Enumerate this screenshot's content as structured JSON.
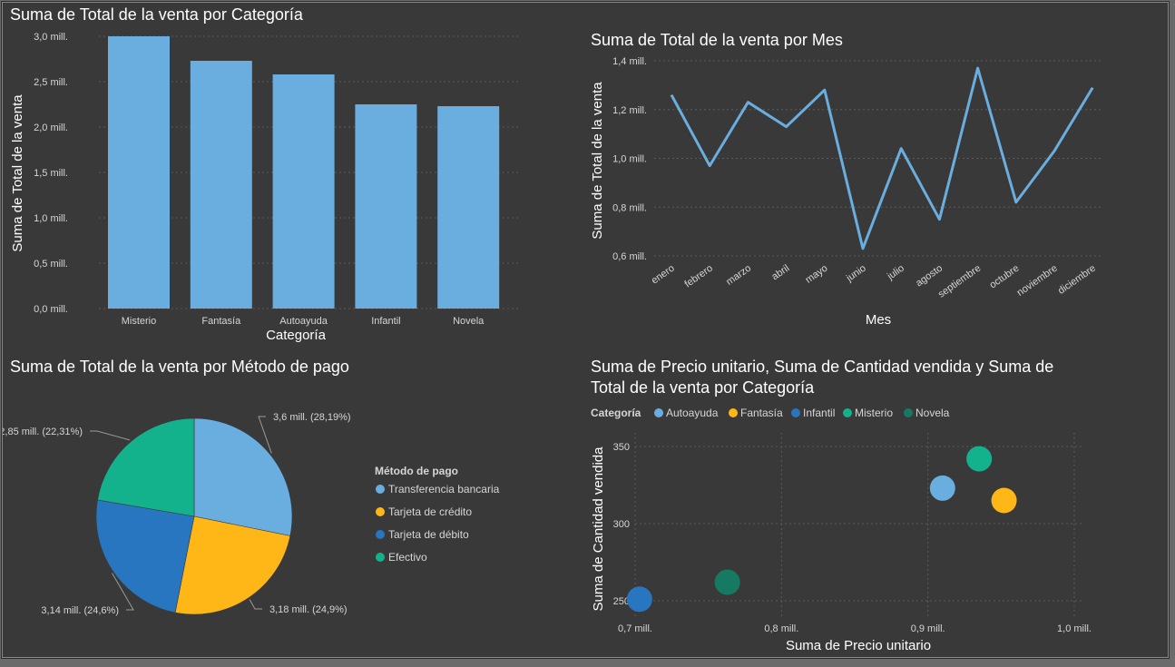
{
  "colors": {
    "bar": "#6AAEE0",
    "line": "#6AAEE0",
    "autoayuda": "#6AAEE0",
    "fantasia": "#FFB617",
    "infantil": "#2876C0",
    "misterio": "#13B28C",
    "novela": "#167A63",
    "transferencia": "#6AAEE0",
    "credito": "#FFB617",
    "debito": "#2876C0",
    "efectivo": "#13B28C"
  },
  "chart_data": [
    {
      "type": "bar",
      "title": "Suma de Total de la venta por Categoría",
      "xlabel": "Categoría",
      "ylabel": "Suma de Total de la venta",
      "categories": [
        "Misterio",
        "Fantasía",
        "Autoayuda",
        "Infantil",
        "Novela"
      ],
      "values": [
        3.0,
        2.73,
        2.58,
        2.25,
        2.23
      ],
      "ylim": [
        0,
        3.0
      ],
      "yticks": [
        0,
        0.5,
        1.0,
        1.5,
        2.0,
        2.5,
        3.0
      ],
      "ytick_labels": [
        "0,0 mill.",
        "0,5 mill.",
        "1,0 mill.",
        "1,5 mill.",
        "2,0 mill.",
        "2,5 mill.",
        "3,0 mill."
      ],
      "grid": true
    },
    {
      "type": "line",
      "title": "Suma de Total de la venta por Mes",
      "xlabel": "Mes",
      "ylabel": "Suma de Total de la venta",
      "categories": [
        "enero",
        "febrero",
        "marzo",
        "abril",
        "mayo",
        "junio",
        "julio",
        "agosto",
        "septiembre",
        "octubre",
        "noviembre",
        "diciembre"
      ],
      "values": [
        1.26,
        0.97,
        1.23,
        1.13,
        1.28,
        0.63,
        1.04,
        0.75,
        1.37,
        0.82,
        1.03,
        1.29
      ],
      "ylim": [
        0.6,
        1.4
      ],
      "yticks": [
        0.6,
        0.8,
        1.0,
        1.2,
        1.4
      ],
      "ytick_labels": [
        "0,6 mill.",
        "0,8 mill.",
        "1,0 mill.",
        "1,2 mill.",
        "1,4 mill."
      ],
      "grid": true
    },
    {
      "type": "pie",
      "title": "Suma de Total de la venta por Método de pago",
      "legend_title": "Método de pago",
      "legend_position": "right",
      "slices": [
        {
          "name": "Transferencia bancaria",
          "value": 3.6,
          "label": "3,6 mill. (28,19%)",
          "color_key": "transferencia"
        },
        {
          "name": "Tarjeta de crédito",
          "value": 3.18,
          "label": "3,18 mill. (24,9%)",
          "color_key": "credito"
        },
        {
          "name": "Tarjeta de débito",
          "value": 3.14,
          "label": "3,14 mill. (24,6%)",
          "color_key": "debito"
        },
        {
          "name": "Efectivo",
          "value": 2.85,
          "label": "2,85 mill. (22,31%)",
          "color_key": "efectivo"
        }
      ]
    },
    {
      "type": "scatter",
      "title_lines": [
        "Suma de Precio unitario, Suma de Cantidad vendida y Suma de",
        "Total de la venta por Categoría"
      ],
      "legend_title": "Categoría",
      "legend_position": "top-left",
      "xlabel": "Suma de Precio unitario",
      "ylabel": "Suma de Cantidad vendida",
      "xlim": [
        0.7,
        1.0
      ],
      "ylim": [
        250,
        350
      ],
      "xticks": [
        0.7,
        0.8,
        0.9,
        1.0
      ],
      "xtick_labels": [
        "0,7 mill.",
        "0,8 mill.",
        "0,9 mill.",
        "1,0 mill."
      ],
      "yticks": [
        250,
        300,
        350
      ],
      "ytick_labels": [
        "250",
        "300",
        "350"
      ],
      "grid": true,
      "points": [
        {
          "name": "Autoayuda",
          "x": 0.91,
          "y": 323,
          "color_key": "autoayuda"
        },
        {
          "name": "Fantasía",
          "x": 0.952,
          "y": 315,
          "color_key": "fantasia"
        },
        {
          "name": "Infantil",
          "x": 0.703,
          "y": 251,
          "color_key": "infantil"
        },
        {
          "name": "Misterio",
          "x": 0.935,
          "y": 342,
          "color_key": "misterio"
        },
        {
          "name": "Novela",
          "x": 0.763,
          "y": 262,
          "color_key": "novela"
        }
      ]
    }
  ]
}
